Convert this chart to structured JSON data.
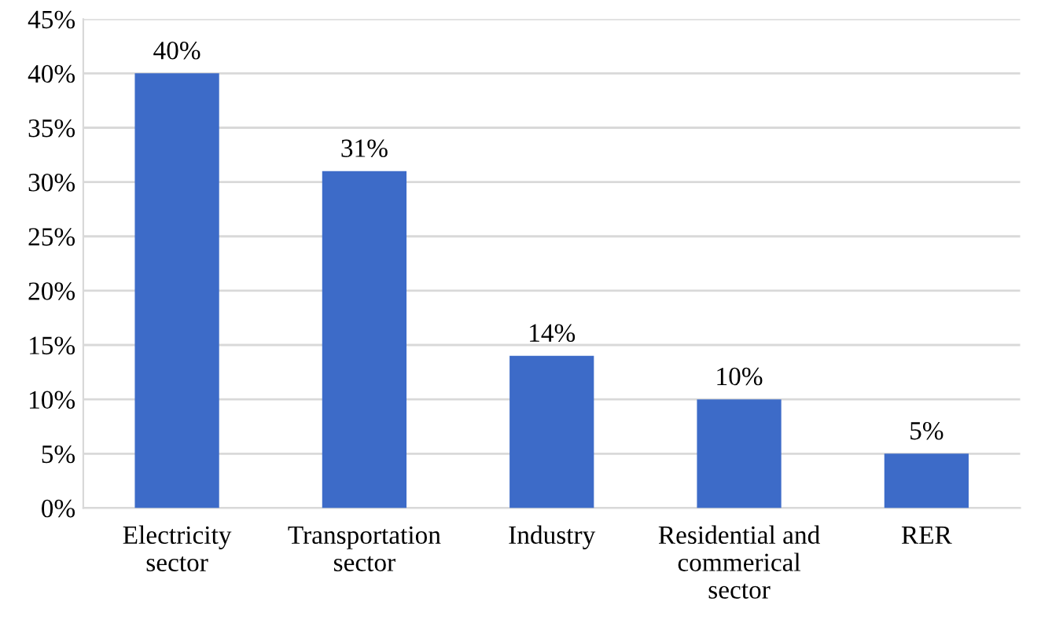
{
  "chart_data": {
    "type": "bar",
    "categories": [
      "Electricity\nsector",
      "Transportation\nsector",
      "Industry",
      "Residential and\ncommerical\nsector",
      "RER"
    ],
    "values": [
      40,
      31,
      14,
      10,
      5
    ],
    "value_labels": [
      "40%",
      "31%",
      "14%",
      "10%",
      "5%"
    ],
    "color": "#3d6bc8",
    "ylim": [
      0,
      45
    ],
    "yticks": [
      {
        "value": 0,
        "label": "0%"
      },
      {
        "value": 5,
        "label": "5%"
      },
      {
        "value": 10,
        "label": "10%"
      },
      {
        "value": 15,
        "label": "15%"
      },
      {
        "value": 20,
        "label": "20%"
      },
      {
        "value": 25,
        "label": "25%"
      },
      {
        "value": 30,
        "label": "30%"
      },
      {
        "value": 35,
        "label": "35%"
      },
      {
        "value": 40,
        "label": "40%"
      },
      {
        "value": 45,
        "label": "45%"
      }
    ],
    "grid": "y"
  }
}
